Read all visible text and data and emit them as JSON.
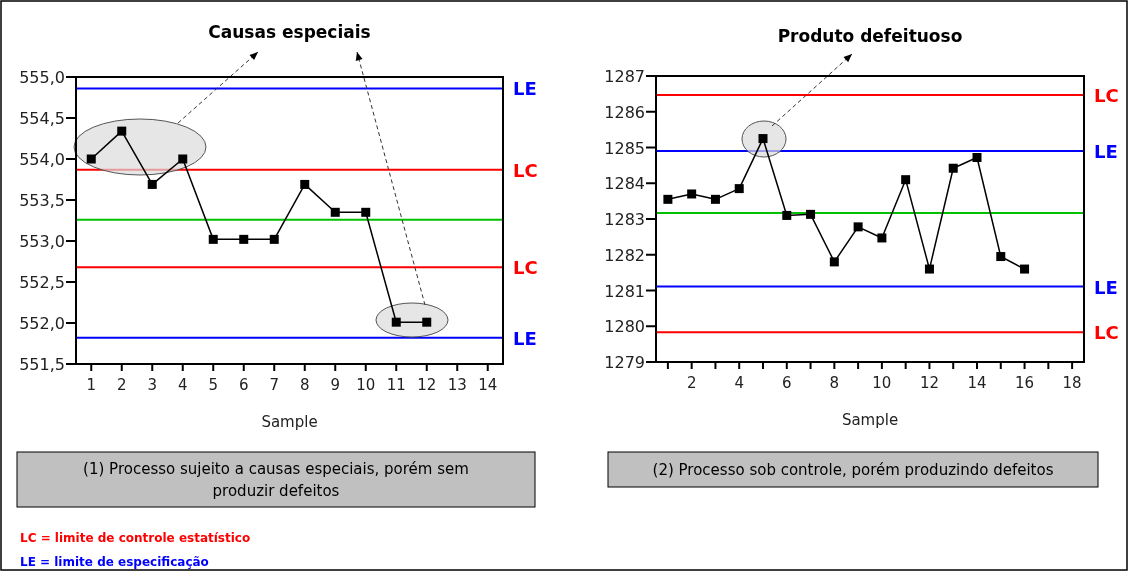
{
  "chart_data": [
    {
      "type": "line",
      "title": "Causas especiais",
      "xlabel": "Sample",
      "x": [
        1,
        2,
        3,
        4,
        5,
        6,
        7,
        8,
        9,
        10,
        11,
        12
      ],
      "values": [
        554.0,
        554.34,
        553.69,
        554.0,
        553.02,
        553.02,
        553.02,
        553.69,
        553.35,
        553.35,
        552.01,
        552.01
      ],
      "color": "#000000",
      "marker": "square",
      "line_style": "solid",
      "xlim": [
        0.5,
        14.5
      ],
      "xticks": [
        1,
        2,
        3,
        4,
        5,
        6,
        7,
        8,
        9,
        10,
        11,
        12,
        13,
        14
      ],
      "ylim": [
        551.5,
        555.0
      ],
      "yticks": [
        {
          "value": 551.5,
          "label": "551,5"
        },
        {
          "value": 552.0,
          "label": "552,0"
        },
        {
          "value": 552.5,
          "label": "552,5"
        },
        {
          "value": 553.0,
          "label": "553,0"
        },
        {
          "value": 553.5,
          "label": "553,5"
        },
        {
          "value": 554.0,
          "label": "554,0"
        },
        {
          "value": 554.5,
          "label": "554,5"
        },
        {
          "value": 555.0,
          "label": "555,0"
        }
      ],
      "ref_lines": [
        {
          "axis": "y",
          "value": 554.86,
          "label": "LE",
          "color": "#0000ff"
        },
        {
          "axis": "y",
          "value": 553.87,
          "label": "LC",
          "color": "#ff0000"
        },
        {
          "axis": "y",
          "value": 553.26,
          "color": "#00c000"
        },
        {
          "axis": "y",
          "value": 552.68,
          "label": "LC",
          "color": "#ff0000"
        },
        {
          "axis": "y",
          "value": 551.82,
          "label": "LE",
          "color": "#0000ff"
        }
      ],
      "annotations": [
        "(1) Processo sujeito a causas especiais, porém sem produzir defeitos",
        "LC = limite de controle estatístico",
        "LE = limite de especificação"
      ]
    },
    {
      "type": "line",
      "title": "Produto defeituoso",
      "xlabel": "Sample",
      "x": [
        1,
        2,
        3,
        4,
        5,
        6,
        7,
        8,
        9,
        10,
        11,
        12,
        13,
        14,
        15,
        16
      ],
      "values": [
        1283.55,
        1283.7,
        1283.55,
        1283.85,
        1285.25,
        1283.1,
        1283.13,
        1281.8,
        1282.78,
        1282.47,
        1284.1,
        1281.6,
        1284.42,
        1284.72,
        1281.95,
        1281.6
      ],
      "color": "#000000",
      "marker": "square",
      "line_style": "solid",
      "xlim": [
        0.5,
        18.5
      ],
      "xticks": [
        {
          "value": 1,
          "label": null
        },
        2,
        {
          "value": 3,
          "label": null
        },
        4,
        {
          "value": 5,
          "label": null
        },
        6,
        {
          "value": 7,
          "label": null
        },
        8,
        {
          "value": 9,
          "label": null
        },
        10,
        {
          "value": 11,
          "label": null
        },
        12,
        {
          "value": 13,
          "label": null
        },
        14,
        {
          "value": 15,
          "label": null
        },
        16,
        {
          "value": 17,
          "label": null
        },
        18
      ],
      "ylim": [
        1279,
        1287
      ],
      "yticks": [
        1279,
        1280,
        1281,
        1282,
        1283,
        1284,
        1285,
        1286,
        1287
      ],
      "ref_lines": [
        {
          "axis": "y",
          "value": 1286.47,
          "label": "LC",
          "color": "#ff0000"
        },
        {
          "axis": "y",
          "value": 1284.9,
          "label": "LE",
          "color": "#0000ff"
        },
        {
          "axis": "y",
          "value": 1283.17,
          "color": "#00c000"
        },
        {
          "axis": "y",
          "value": 1281.11,
          "label": "LE",
          "color": "#0000ff"
        },
        {
          "axis": "y",
          "value": 1279.83,
          "label": "LC",
          "color": "#ff0000"
        }
      ],
      "annotations": [
        "(2) Processo sob controle, porém produzindo defeitos"
      ]
    }
  ]
}
